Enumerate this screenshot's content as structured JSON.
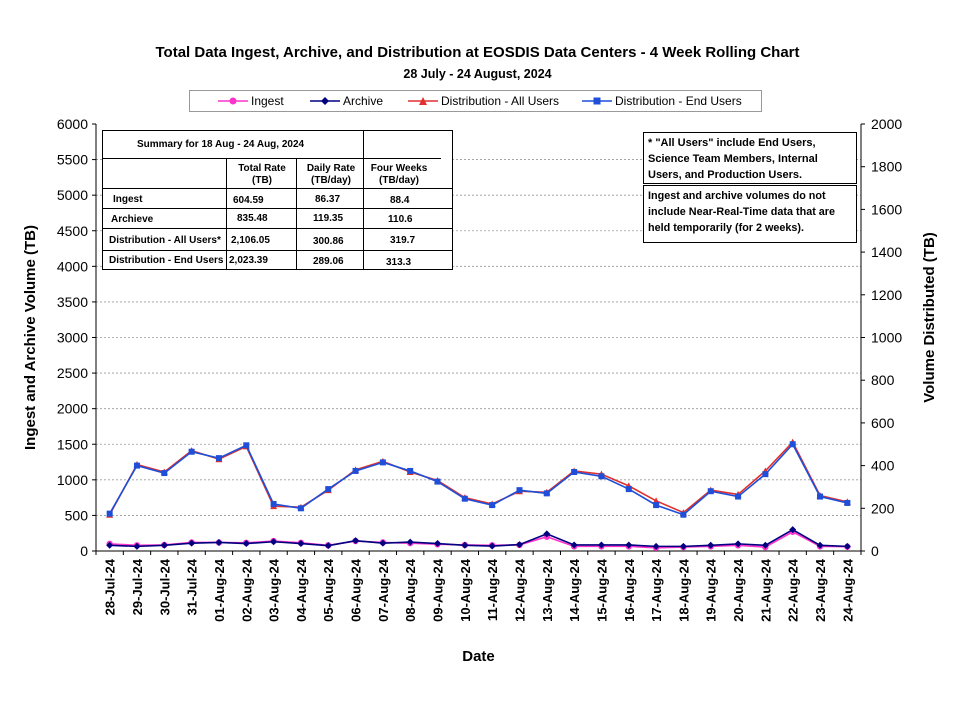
{
  "chart_data": {
    "type": "line",
    "title": "Total Data Ingest, Archive, and  Distribution at EOSDIS Data Centers - 4 Week Rolling Chart",
    "subtitle": "28  July   -  24  August,  2024",
    "xlabel": "Date",
    "ylabel_left": "Ingest and Archive Volume (TB)",
    "ylabel_right": "Volume Distributed (TB)",
    "ylim_left": [
      0,
      6000
    ],
    "ylim_right": [
      0,
      2000
    ],
    "yticks_left": [
      "0",
      "500",
      "1000",
      "1500",
      "2000",
      "2500",
      "3000",
      "3500",
      "4000",
      "4500",
      "5000",
      "5500",
      "6000"
    ],
    "yticks_right": [
      "0",
      "200",
      "400",
      "600",
      "800",
      "1000",
      "1200",
      "1400",
      "1600",
      "1800",
      "2000"
    ],
    "grid": true,
    "legend_position": "top",
    "categories": [
      "28-Jul-24",
      "29-Jul-24",
      "30-Jul-24",
      "31-Jul-24",
      "01-Aug-24",
      "02-Aug-24",
      "03-Aug-24",
      "04-Aug-24",
      "05-Aug-24",
      "06-Aug-24",
      "07-Aug-24",
      "08-Aug-24",
      "09-Aug-24",
      "10-Aug-24",
      "11-Aug-24",
      "12-Aug-24",
      "13-Aug-24",
      "14-Aug-24",
      "15-Aug-24",
      "16-Aug-24",
      "17-Aug-24",
      "18-Aug-24",
      "19-Aug-24",
      "20-Aug-24",
      "21-Aug-24",
      "22-Aug-24",
      "23-Aug-24",
      "24-Aug-24"
    ],
    "series": [
      {
        "name": "Ingest",
        "axis": "left",
        "color": "#ff33cc",
        "marker": "circle",
        "values": [
          100,
          80,
          85,
          120,
          120,
          115,
          140,
          115,
          80,
          140,
          120,
          110,
          95,
          85,
          80,
          85,
          200,
          65,
          65,
          65,
          45,
          55,
          65,
          80,
          55,
          270,
          65,
          60
        ]
      },
      {
        "name": "Archive",
        "axis": "left",
        "color": "#000080",
        "marker": "diamond",
        "values": [
          80,
          65,
          80,
          110,
          120,
          105,
          130,
          105,
          75,
          145,
          110,
          125,
          105,
          80,
          70,
          90,
          240,
          85,
          85,
          85,
          65,
          65,
          80,
          100,
          80,
          300,
          80,
          65
        ]
      },
      {
        "name": "Distribution - All Users",
        "axis": "right",
        "color": "#e03030",
        "marker": "triangle",
        "values": [
          170,
          405,
          370,
          470,
          430,
          490,
          210,
          205,
          285,
          380,
          420,
          370,
          330,
          250,
          220,
          280,
          275,
          375,
          360,
          305,
          235,
          180,
          285,
          265,
          375,
          510,
          260,
          230
        ]
      },
      {
        "name": "Distribution - End Users",
        "axis": "right",
        "color": "#1f4fd8",
        "marker": "square",
        "values": [
          175,
          400,
          365,
          465,
          435,
          495,
          220,
          200,
          290,
          375,
          415,
          375,
          325,
          245,
          215,
          285,
          270,
          370,
          350,
          290,
          215,
          170,
          280,
          255,
          360,
          500,
          255,
          225
        ]
      }
    ]
  },
  "summary": {
    "heading": "Summary  for  18  Aug   -  24  Aug,  2024",
    "col_total": "Total Rate (TB)",
    "col_daily": "Daily Rate (TB/day)",
    "col_four": "Four Weeks (TB/day)",
    "rows": [
      {
        "label": "Ingest",
        "total": "604.59",
        "daily": "86.37",
        "four": "88.4"
      },
      {
        "label": "Archieve",
        "total": "835.48",
        "daily": "119.35",
        "four": "110.6"
      },
      {
        "label": "Distribution - All Users*",
        "total": "2,106.05",
        "daily": "300.86",
        "four": "319.7"
      },
      {
        "label": "Distribution - End Users",
        "total": "2,023.39",
        "daily": "289.06",
        "four": "313.3"
      }
    ]
  },
  "notes": {
    "note1": "* \"All Users\" include End Users, Science Team Members,  Internal Users, and Production Users.",
    "note2": "Ingest and archive volumes do not include Near-Real-Time data that are held temporarily (for 2 weeks)."
  }
}
